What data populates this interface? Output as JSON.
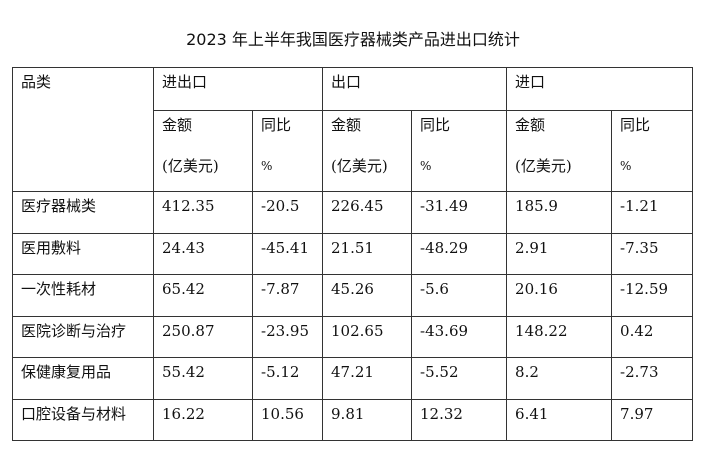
{
  "title": "2023 年上半年我国医疗器械类产品进出口统计",
  "table": {
    "category_header": "品类",
    "groups": [
      "进出口",
      "出口",
      "进口"
    ],
    "subheaders": [
      {
        "label": "金额",
        "unit": "(亿美元)"
      },
      {
        "label": "同比",
        "unit": "%"
      },
      {
        "label": "金额",
        "unit": "(亿美元)"
      },
      {
        "label": "同比",
        "unit": "%"
      },
      {
        "label": "金额",
        "unit": "(亿美元)"
      },
      {
        "label": "同比",
        "unit": "%"
      }
    ],
    "rows": [
      [
        "医疗器械类",
        "412.35",
        "-20.5",
        "226.45",
        "-31.49",
        "185.9",
        "-1.21"
      ],
      [
        "医用敷料",
        "24.43",
        "-45.41",
        "21.51",
        "-48.29",
        "2.91",
        "-7.35"
      ],
      [
        "一次性耗材",
        "65.42",
        "-7.87",
        "45.26",
        "-5.6",
        "20.16",
        "-12.59"
      ],
      [
        "医院诊断与治疗",
        "250.87",
        "-23.95",
        "102.65",
        "-43.69",
        "148.22",
        "0.42"
      ],
      [
        "保健康复用品",
        "55.42",
        "-5.12",
        "47.21",
        "-5.52",
        "8.2",
        "-2.73"
      ],
      [
        "口腔设备与材料",
        "16.22",
        "10.56",
        "9.81",
        "12.32",
        "6.41",
        "7.97"
      ]
    ]
  }
}
